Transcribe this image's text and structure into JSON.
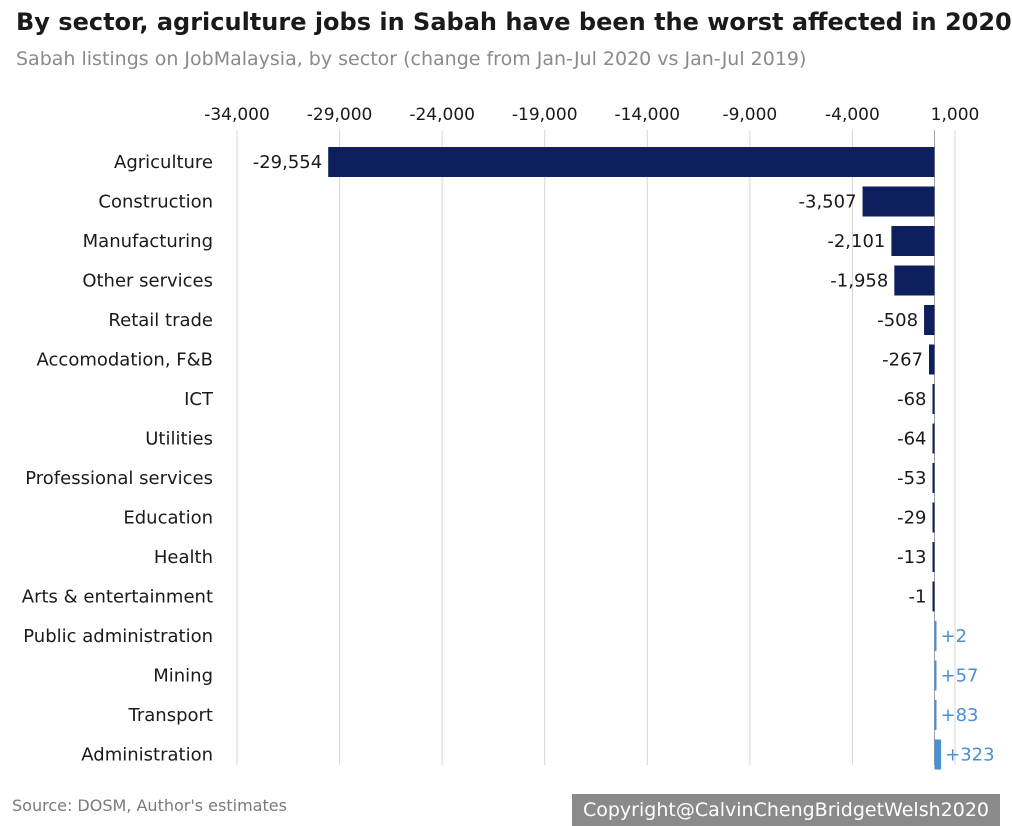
{
  "chart_data": {
    "type": "bar",
    "orientation": "horizontal",
    "title": "By sector, agriculture jobs in Sabah have been the worst affected in 2020",
    "subtitle": "Sabah listings on JobMalaysia, by sector (change from Jan-Jul 2020 vs Jan-Jul 2019)",
    "categories": [
      "Agriculture",
      "Construction",
      "Manufacturing",
      "Other services",
      "Retail trade",
      "Accomodation, F&B",
      "ICT",
      "Utilities",
      "Professional services",
      "Education",
      "Health",
      "Arts & entertainment",
      "Public administration",
      "Mining",
      "Transport",
      "Administration"
    ],
    "values": [
      -29554,
      -3507,
      -2101,
      -1958,
      -508,
      -267,
      -68,
      -64,
      -53,
      -29,
      -13,
      -1,
      2,
      57,
      83,
      323
    ],
    "value_labels": [
      "-29,554",
      "-3,507",
      "-2,101",
      "-1,958",
      "-508",
      "-267",
      "-68",
      "-64",
      "-53",
      "-29",
      "-13",
      "-1",
      "+2",
      "+57",
      "+83",
      "+323"
    ],
    "tick_values": [
      -34000,
      -29000,
      -24000,
      -19000,
      -14000,
      -9000,
      -4000,
      1000
    ],
    "tick_labels": [
      "-34,000",
      "-29,000",
      "-24,000",
      "-19,000",
      "-14,000",
      "-9,000",
      "-4,000",
      "1,000"
    ],
    "xlim": [
      -34000,
      1000
    ],
    "axis_position": "top",
    "grid": true,
    "colors": {
      "negative": "#0d1f5c",
      "positive": "#4a8fd0",
      "grid": "#d4d4d4"
    }
  },
  "footer": {
    "source": "Source: DOSM, Author's estimates",
    "copyright": "Copyright@CalvinChengBridgetWelsh2020"
  }
}
